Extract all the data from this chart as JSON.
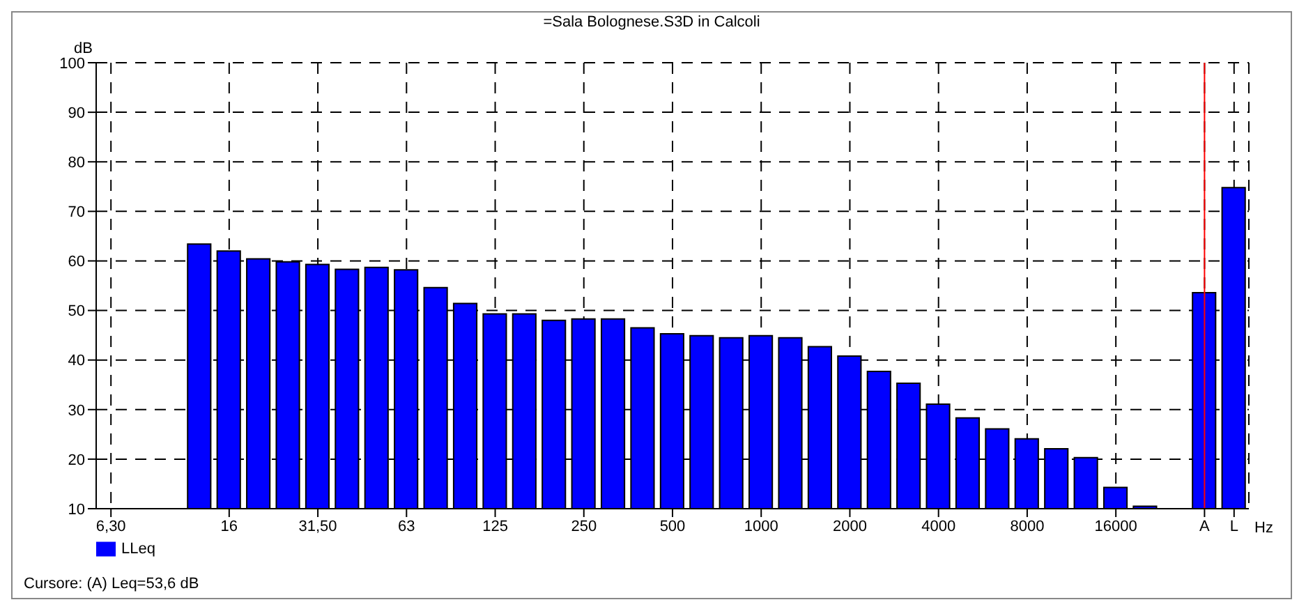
{
  "chart_data": {
    "type": "bar",
    "title": "=Sala Bolognese.S3D in Calcoli",
    "xlabel": "Hz",
    "ylabel": "dB",
    "categories": [
      "6,30",
      null,
      null,
      null,
      "16",
      null,
      null,
      "31,50",
      null,
      null,
      "63",
      null,
      null,
      "125",
      null,
      null,
      "250",
      null,
      null,
      "500",
      null,
      null,
      "1000",
      null,
      null,
      "2000",
      null,
      null,
      "4000",
      null,
      null,
      "8000",
      null,
      null,
      "16000",
      null,
      null,
      "A",
      "L"
    ],
    "series": [
      {
        "name": "LLeq",
        "color": "#0000ff",
        "values": [
          10,
          10,
          10,
          63.4,
          62,
          60.4,
          59.8,
          59.3,
          58.3,
          58.7,
          58.2,
          54.6,
          51.4,
          49.3,
          49.3,
          48,
          48.3,
          48.3,
          46.5,
          45.3,
          44.9,
          44.5,
          44.9,
          44.5,
          42.7,
          40.8,
          37.7,
          35.3,
          31.1,
          28.3,
          26.1,
          24.1,
          22.1,
          20.3,
          14.3,
          10.5,
          10,
          53.6,
          74.8
        ]
      }
    ],
    "ylim": [
      10,
      100
    ],
    "yticks": [
      10,
      20,
      30,
      40,
      50,
      60,
      70,
      80,
      90,
      100
    ],
    "grid": true,
    "legend": "bottom left",
    "ref_lines": [
      {
        "axis": "x",
        "value": "A",
        "color": "#ff0000",
        "line_style": "solid"
      }
    ],
    "annotations": [
      "Cursore: (A)  Leq=53,6 dB"
    ]
  }
}
